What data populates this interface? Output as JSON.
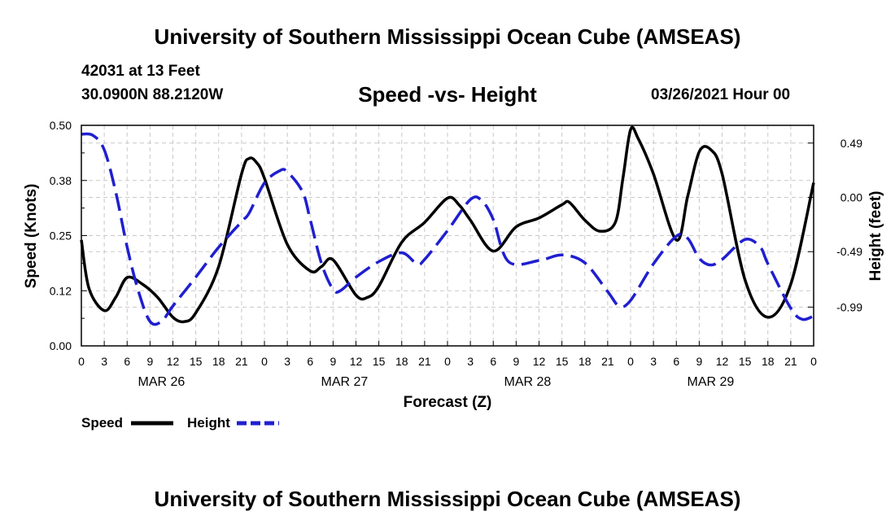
{
  "header": {
    "title": "University of Southern Mississippi Ocean Cube (AMSEAS)",
    "station": "42031 at 13 Feet",
    "coords": "30.0900N  88.2120W",
    "subtitle": "Speed -vs- Height",
    "datetime": "03/26/2021 Hour 00"
  },
  "footer": {
    "title": "University of Southern Mississippi Ocean Cube (AMSEAS)"
  },
  "chart_data": {
    "type": "line",
    "xlabel": "Forecast (Z)",
    "ylabel_left": "Speed (Knots)",
    "ylabel_right": "Height (feet)",
    "x_range_hours": [
      0,
      96
    ],
    "x_ticks": [
      {
        "hour": 0,
        "label": "0"
      },
      {
        "hour": 3,
        "label": "3"
      },
      {
        "hour": 6,
        "label": "6"
      },
      {
        "hour": 9,
        "label": "9"
      },
      {
        "hour": 12,
        "label": "12"
      },
      {
        "hour": 15,
        "label": "15"
      },
      {
        "hour": 18,
        "label": "18"
      },
      {
        "hour": 21,
        "label": "21"
      },
      {
        "hour": 24,
        "label": "0"
      },
      {
        "hour": 27,
        "label": "3"
      },
      {
        "hour": 30,
        "label": "6"
      },
      {
        "hour": 33,
        "label": "9"
      },
      {
        "hour": 36,
        "label": "12"
      },
      {
        "hour": 39,
        "label": "15"
      },
      {
        "hour": 42,
        "label": "18"
      },
      {
        "hour": 45,
        "label": "21"
      },
      {
        "hour": 48,
        "label": "0"
      },
      {
        "hour": 51,
        "label": "3"
      },
      {
        "hour": 54,
        "label": "6"
      },
      {
        "hour": 57,
        "label": "9"
      },
      {
        "hour": 60,
        "label": "12"
      },
      {
        "hour": 63,
        "label": "15"
      },
      {
        "hour": 66,
        "label": "18"
      },
      {
        "hour": 69,
        "label": "21"
      },
      {
        "hour": 72,
        "label": "0"
      },
      {
        "hour": 75,
        "label": "3"
      },
      {
        "hour": 78,
        "label": "6"
      },
      {
        "hour": 81,
        "label": "9"
      },
      {
        "hour": 84,
        "label": "12"
      },
      {
        "hour": 87,
        "label": "15"
      },
      {
        "hour": 90,
        "label": "18"
      },
      {
        "hour": 93,
        "label": "21"
      },
      {
        "hour": 96,
        "label": "0"
      }
    ],
    "day_labels": [
      {
        "hour": 10.5,
        "label": "MAR 26"
      },
      {
        "hour": 34.5,
        "label": "MAR 27"
      },
      {
        "hour": 58.5,
        "label": "MAR 28"
      },
      {
        "hour": 82.5,
        "label": "MAR 29"
      }
    ],
    "left_axis": {
      "range": [
        0,
        0.5
      ],
      "ticks": [
        0.0,
        0.125,
        0.25,
        0.375,
        0.5
      ],
      "tick_labels": [
        "0.00",
        "0.12",
        "0.25",
        "0.38",
        "0.50"
      ]
    },
    "right_axis": {
      "range": [
        -1.34,
        0.65
      ],
      "ticks": [
        -0.99,
        -0.49,
        0.0,
        0.49
      ],
      "tick_labels": [
        "-0.99",
        "-0.49",
        "0.00",
        "0.49"
      ]
    },
    "grid": true,
    "legend_position": "bottom-left",
    "series": [
      {
        "name": "Speed",
        "axis": "left",
        "color": "#000000",
        "style": "solid",
        "points": [
          [
            0,
            0.24
          ],
          [
            1,
            0.13
          ],
          [
            3,
            0.08
          ],
          [
            4.5,
            0.11
          ],
          [
            6,
            0.155
          ],
          [
            8,
            0.14
          ],
          [
            10,
            0.11
          ],
          [
            12,
            0.065
          ],
          [
            13.5,
            0.055
          ],
          [
            15,
            0.075
          ],
          [
            18,
            0.18
          ],
          [
            21,
            0.39
          ],
          [
            22,
            0.425
          ],
          [
            23,
            0.415
          ],
          [
            24,
            0.38
          ],
          [
            27,
            0.23
          ],
          [
            30,
            0.17
          ],
          [
            31.5,
            0.18
          ],
          [
            33,
            0.195
          ],
          [
            36,
            0.115
          ],
          [
            37.5,
            0.11
          ],
          [
            39,
            0.135
          ],
          [
            42,
            0.235
          ],
          [
            45,
            0.28
          ],
          [
            48,
            0.335
          ],
          [
            49.5,
            0.32
          ],
          [
            51,
            0.285
          ],
          [
            54,
            0.215
          ],
          [
            57,
            0.27
          ],
          [
            60,
            0.29
          ],
          [
            63,
            0.32
          ],
          [
            64,
            0.325
          ],
          [
            66,
            0.285
          ],
          [
            68,
            0.26
          ],
          [
            70,
            0.28
          ],
          [
            71,
            0.38
          ],
          [
            72,
            0.49
          ],
          [
            73,
            0.47
          ],
          [
            75,
            0.39
          ],
          [
            78,
            0.24
          ],
          [
            79.5,
            0.34
          ],
          [
            81,
            0.44
          ],
          [
            82.5,
            0.445
          ],
          [
            84,
            0.39
          ],
          [
            87,
            0.15
          ],
          [
            90,
            0.065
          ],
          [
            93,
            0.14
          ],
          [
            96,
            0.37
          ]
        ]
      },
      {
        "name": "Height",
        "axis": "right",
        "color": "#1f1fcf",
        "style": "dashed",
        "points": [
          [
            0,
            0.57
          ],
          [
            1.5,
            0.56
          ],
          [
            3,
            0.43
          ],
          [
            4.5,
            0.05
          ],
          [
            6,
            -0.45
          ],
          [
            7.5,
            -0.85
          ],
          [
            9,
            -1.12
          ],
          [
            10.5,
            -1.12
          ],
          [
            12,
            -0.98
          ],
          [
            15,
            -0.72
          ],
          [
            18,
            -0.45
          ],
          [
            21,
            -0.22
          ],
          [
            22,
            -0.14
          ],
          [
            24,
            0.13
          ],
          [
            26,
            0.24
          ],
          [
            27,
            0.23
          ],
          [
            29,
            0.05
          ],
          [
            30,
            -0.2
          ],
          [
            31.5,
            -0.6
          ],
          [
            33,
            -0.83
          ],
          [
            34,
            -0.84
          ],
          [
            36,
            -0.72
          ],
          [
            39,
            -0.58
          ],
          [
            42,
            -0.5
          ],
          [
            44,
            -0.6
          ],
          [
            45,
            -0.56
          ],
          [
            48,
            -0.3
          ],
          [
            51,
            -0.02
          ],
          [
            52.5,
            -0.03
          ],
          [
            54,
            -0.2
          ],
          [
            56,
            -0.58
          ],
          [
            60,
            -0.57
          ],
          [
            63,
            -0.52
          ],
          [
            66,
            -0.59
          ],
          [
            69,
            -0.85
          ],
          [
            70.5,
            -0.98
          ],
          [
            72,
            -0.93
          ],
          [
            75,
            -0.6
          ],
          [
            78,
            -0.35
          ],
          [
            79.5,
            -0.37
          ],
          [
            81,
            -0.55
          ],
          [
            82.5,
            -0.61
          ],
          [
            84,
            -0.56
          ],
          [
            87,
            -0.38
          ],
          [
            89,
            -0.45
          ],
          [
            90,
            -0.6
          ],
          [
            93,
            -1.0
          ],
          [
            94.5,
            -1.1
          ],
          [
            96,
            -1.07
          ]
        ]
      }
    ]
  }
}
